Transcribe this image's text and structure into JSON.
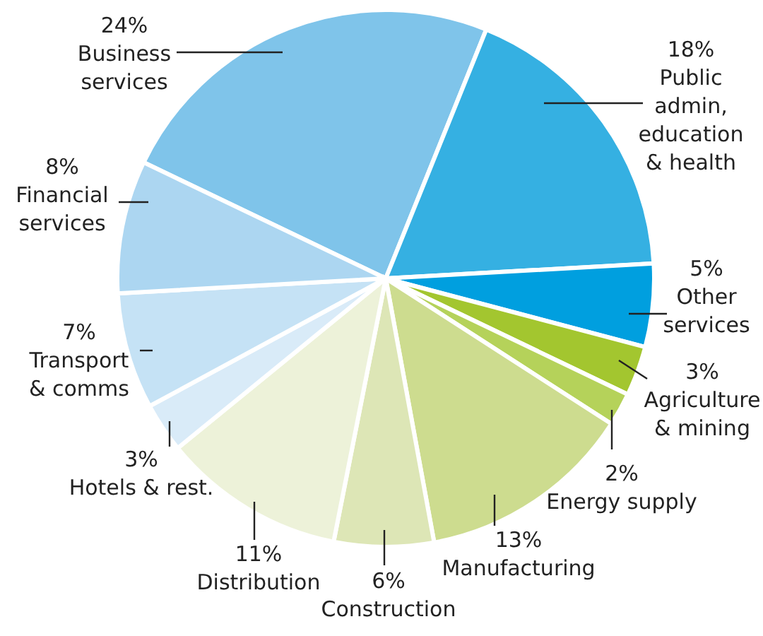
{
  "chart_data": {
    "type": "pie",
    "categories": [
      "Business\nservices",
      "Public\nadmin,\neducation\n& health",
      "Other\nservices",
      "Agriculture\n& mining",
      "Energy supply",
      "Manufacturing",
      "Construction",
      "Distribution",
      "Hotels & rest.",
      "Transport\n& comms",
      "Financial\nservices"
    ],
    "values": [
      24,
      18,
      5,
      3,
      2,
      13,
      6,
      11,
      3,
      7,
      8
    ],
    "value_labels": [
      "24%",
      "18%",
      "5%",
      "3%",
      "2%",
      "13%",
      "6%",
      "11%",
      "3%",
      "7%",
      "8%"
    ],
    "colors": [
      "#7fc4ea",
      "#35b0e2",
      "#009fdf",
      "#a3c62f",
      "#b5d25a",
      "#cddc8f",
      "#dde6b6",
      "#edf2d9",
      "#d9ebf8",
      "#c5e2f5",
      "#acd6f1"
    ]
  }
}
